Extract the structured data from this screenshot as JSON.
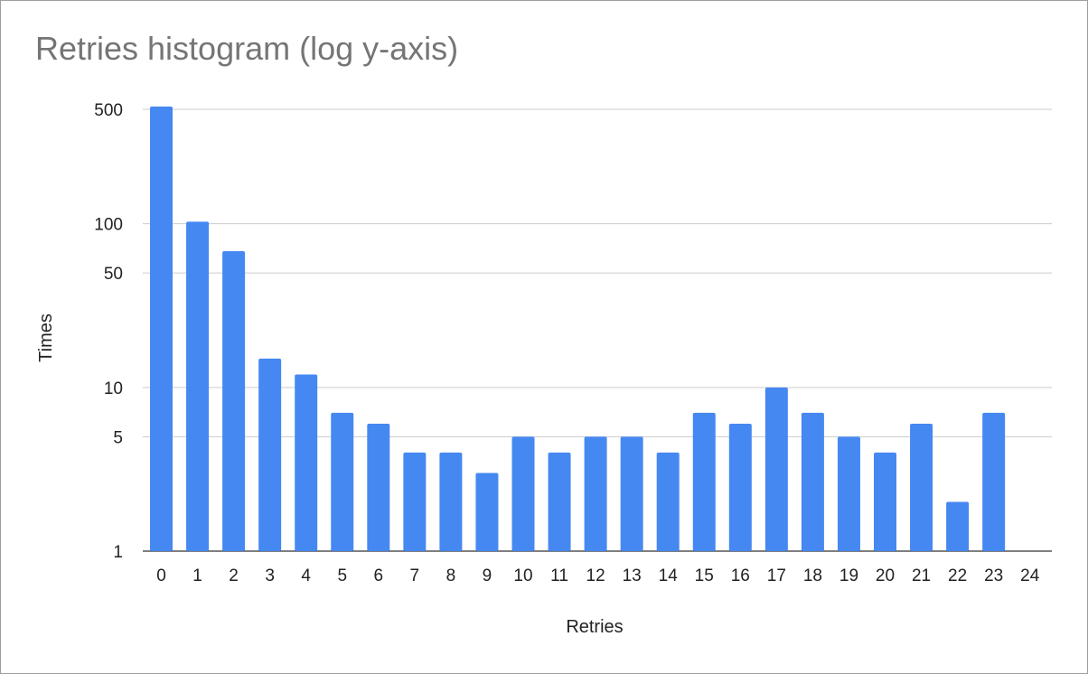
{
  "chart_data": {
    "type": "bar",
    "title": "Retries histogram (log y-axis)",
    "xlabel": "Retries",
    "ylabel": "Times",
    "yscale": "log",
    "ylim": [
      1,
      500
    ],
    "yticks": [
      1,
      5,
      10,
      50,
      100,
      500
    ],
    "grid": true,
    "legend": "none",
    "categories": [
      "0",
      "1",
      "2",
      "3",
      "4",
      "5",
      "6",
      "7",
      "8",
      "9",
      "10",
      "11",
      "12",
      "13",
      "14",
      "15",
      "16",
      "17",
      "18",
      "19",
      "20",
      "21",
      "22",
      "23",
      "24"
    ],
    "values": [
      520,
      103,
      68,
      15,
      12,
      7,
      6,
      4,
      4,
      3,
      5,
      4,
      5,
      5,
      4,
      7,
      6,
      10,
      7,
      5,
      4,
      6,
      2,
      7,
      1
    ],
    "bar_color": "#4688f1"
  }
}
